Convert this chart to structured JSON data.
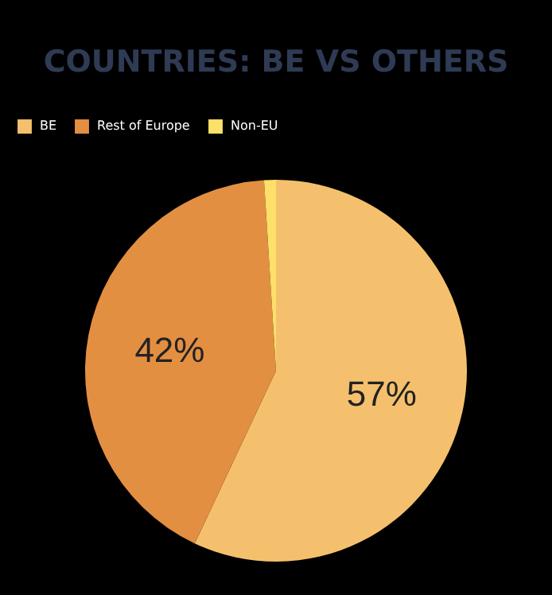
{
  "chart_data": {
    "type": "pie",
    "title": "COUNTRIES: BE VS OTHERS",
    "categories": [
      "BE",
      "Rest of Europe",
      "Non-EU"
    ],
    "values": [
      57,
      42,
      1
    ],
    "colors": [
      "#f5c06d",
      "#e38f42",
      "#fde06a"
    ],
    "value_labels": [
      "57%",
      "42%",
      null
    ],
    "legend": "top"
  }
}
